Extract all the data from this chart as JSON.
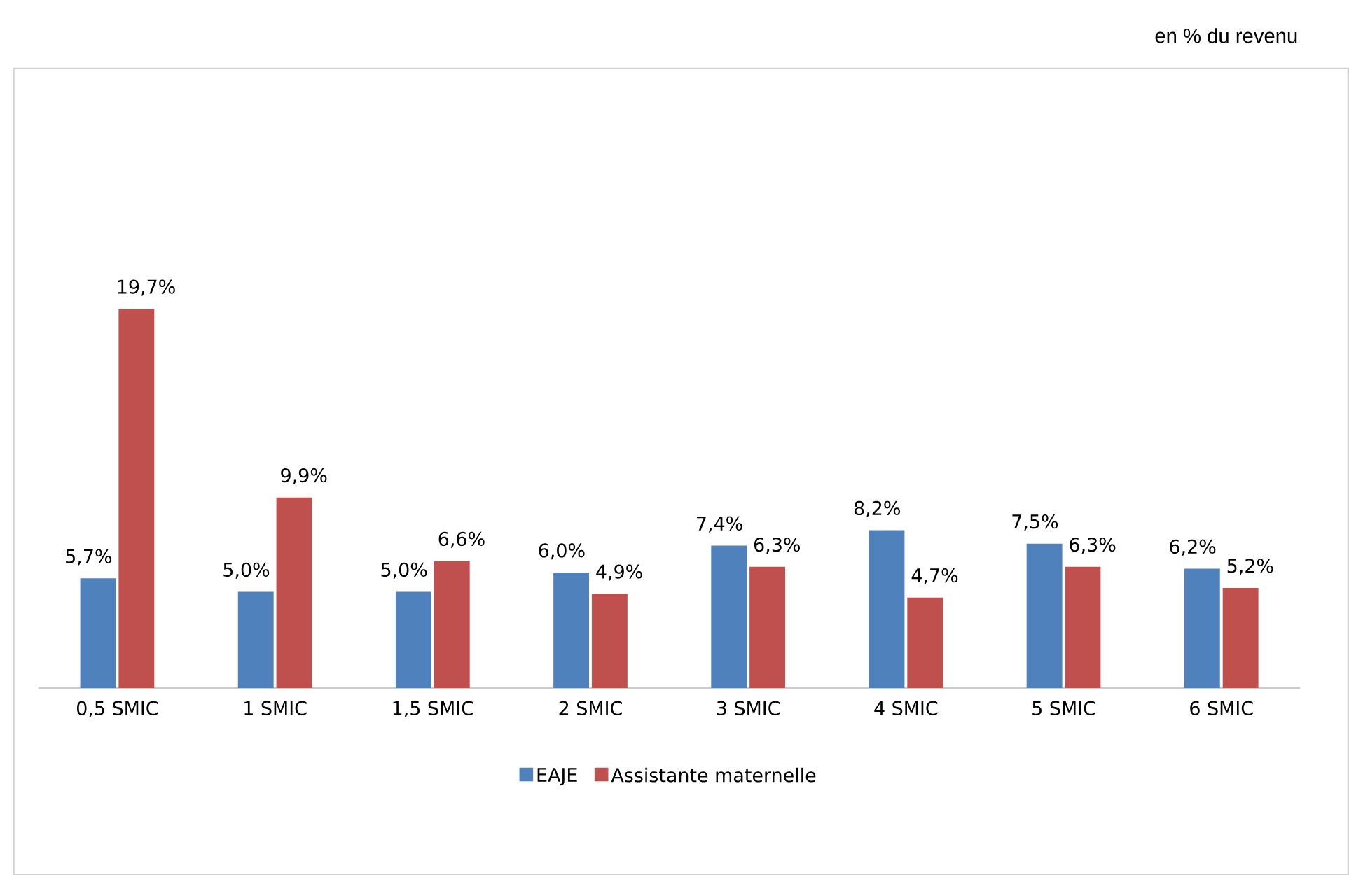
{
  "chart_data": {
    "type": "bar",
    "subtitle": "en % du revenu",
    "categories": [
      "0,5 SMIC",
      "1 SMIC",
      "1,5 SMIC",
      "2 SMIC",
      "3 SMIC",
      "4 SMIC",
      "5 SMIC",
      "6 SMIC"
    ],
    "series": [
      {
        "name": "EAJE",
        "color": "#4f81bd",
        "values": [
          5.7,
          5.0,
          5.0,
          6.0,
          7.4,
          8.2,
          7.5,
          6.2
        ],
        "value_labels": [
          "5,7%",
          "5,0%",
          "5,0%",
          "6,0%",
          "7,4%",
          "8,2%",
          "7,5%",
          "6,2%"
        ]
      },
      {
        "name": "Assistante maternelle",
        "color": "#c0504d",
        "values": [
          19.7,
          9.9,
          6.6,
          4.9,
          6.3,
          4.7,
          6.3,
          5.2
        ],
        "value_labels": [
          "19,7%",
          "9,9%",
          "6,6%",
          "4,9%",
          "6,3%",
          "4,7%",
          "6,3%",
          "5,2%"
        ]
      }
    ],
    "legend": "bottom"
  }
}
